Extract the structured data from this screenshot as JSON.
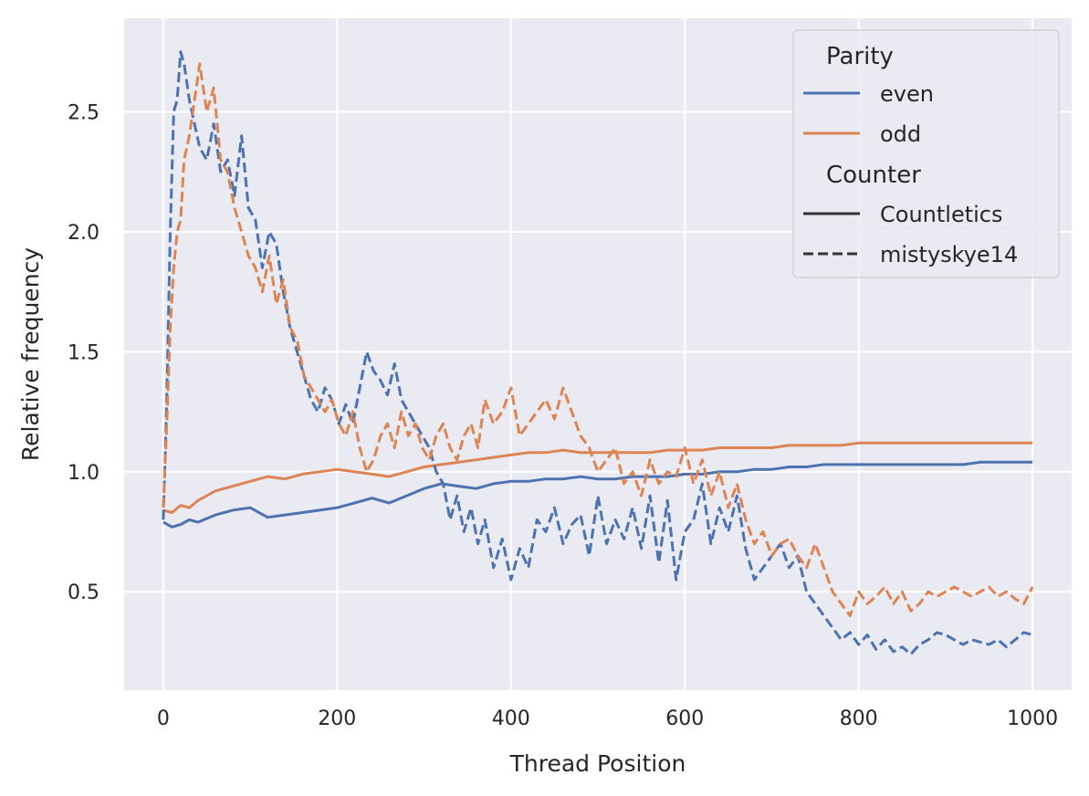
{
  "chart_data": {
    "type": "line",
    "xlabel": "Thread Position",
    "ylabel": "Relative frequency",
    "xlim": [
      -45,
      1045
    ],
    "ylim": [
      0.09,
      2.89
    ],
    "xticks": [
      0,
      200,
      400,
      600,
      800,
      1000
    ],
    "yticks": [
      0.5,
      1.0,
      1.5,
      2.0,
      2.5
    ],
    "xtick_labels": [
      "0",
      "200",
      "400",
      "600",
      "800",
      "1000"
    ],
    "ytick_labels": [
      "0.5",
      "1.0",
      "1.5",
      "2.0",
      "2.5"
    ],
    "grid": true,
    "background": "#eaeaf2",
    "legend": {
      "placement": "top-right",
      "hue_title": "Parity",
      "style_title": "Counter",
      "hue_entries": [
        {
          "label": "even",
          "color": "#4c72b0"
        },
        {
          "label": "odd",
          "color": "#dd8452"
        }
      ],
      "style_entries": [
        {
          "label": "Countletics",
          "dash": "solid"
        },
        {
          "label": "mistyskye14",
          "dash": "dashed"
        }
      ]
    },
    "series": [
      {
        "name": "even, Countletics",
        "color": "#4c72b0",
        "dash": "solid",
        "x": [
          0,
          10,
          20,
          30,
          40,
          60,
          80,
          100,
          120,
          140,
          160,
          180,
          200,
          220,
          240,
          260,
          280,
          300,
          320,
          340,
          360,
          380,
          400,
          420,
          440,
          460,
          480,
          500,
          520,
          540,
          560,
          580,
          600,
          620,
          640,
          660,
          680,
          700,
          720,
          740,
          760,
          780,
          800,
          820,
          840,
          860,
          880,
          900,
          920,
          940,
          960,
          980,
          1000
        ],
        "y": [
          0.79,
          0.77,
          0.78,
          0.8,
          0.79,
          0.82,
          0.84,
          0.85,
          0.81,
          0.82,
          0.83,
          0.84,
          0.85,
          0.87,
          0.89,
          0.87,
          0.9,
          0.93,
          0.95,
          0.94,
          0.93,
          0.95,
          0.96,
          0.96,
          0.97,
          0.97,
          0.98,
          0.97,
          0.97,
          0.98,
          0.98,
          0.98,
          0.99,
          0.99,
          1.0,
          1.0,
          1.01,
          1.01,
          1.02,
          1.02,
          1.03,
          1.03,
          1.03,
          1.03,
          1.03,
          1.03,
          1.03,
          1.03,
          1.03,
          1.04,
          1.04,
          1.04,
          1.04
        ]
      },
      {
        "name": "odd, Countletics",
        "color": "#dd8452",
        "dash": "solid",
        "x": [
          0,
          10,
          20,
          30,
          40,
          60,
          80,
          100,
          120,
          140,
          160,
          180,
          200,
          220,
          240,
          260,
          280,
          300,
          320,
          340,
          360,
          380,
          400,
          420,
          440,
          460,
          480,
          500,
          520,
          540,
          560,
          580,
          600,
          620,
          640,
          660,
          680,
          700,
          720,
          740,
          760,
          780,
          800,
          820,
          840,
          860,
          880,
          900,
          920,
          940,
          960,
          980,
          1000
        ],
        "y": [
          0.84,
          0.83,
          0.86,
          0.85,
          0.88,
          0.92,
          0.94,
          0.96,
          0.98,
          0.97,
          0.99,
          1.0,
          1.01,
          1.0,
          0.99,
          0.98,
          1.0,
          1.02,
          1.03,
          1.04,
          1.05,
          1.06,
          1.07,
          1.08,
          1.08,
          1.09,
          1.08,
          1.08,
          1.08,
          1.08,
          1.08,
          1.09,
          1.09,
          1.09,
          1.1,
          1.1,
          1.1,
          1.1,
          1.11,
          1.11,
          1.11,
          1.11,
          1.12,
          1.12,
          1.12,
          1.12,
          1.12,
          1.12,
          1.12,
          1.12,
          1.12,
          1.12,
          1.12
        ]
      },
      {
        "name": "even, mistyskye14",
        "color": "#4c72b0",
        "dash": "dashed",
        "x": [
          0,
          4,
          8,
          12,
          16,
          20,
          24,
          30,
          36,
          42,
          50,
          58,
          66,
          74,
          82,
          90,
          98,
          106,
          114,
          122,
          130,
          138,
          146,
          154,
          162,
          170,
          178,
          186,
          194,
          202,
          210,
          218,
          226,
          234,
          242,
          250,
          258,
          266,
          274,
          282,
          290,
          298,
          306,
          314,
          322,
          330,
          338,
          346,
          354,
          362,
          370,
          380,
          390,
          400,
          410,
          420,
          430,
          440,
          450,
          460,
          470,
          480,
          490,
          500,
          510,
          520,
          530,
          540,
          550,
          560,
          570,
          580,
          590,
          600,
          610,
          620,
          630,
          640,
          650,
          660,
          670,
          680,
          690,
          700,
          710,
          720,
          730,
          740,
          750,
          760,
          770,
          780,
          790,
          800,
          810,
          820,
          830,
          840,
          850,
          860,
          870,
          880,
          890,
          900,
          910,
          920,
          930,
          940,
          950,
          960,
          970,
          980,
          990,
          1000
        ],
        "y": [
          0.8,
          1.3,
          2.0,
          2.5,
          2.55,
          2.75,
          2.7,
          2.55,
          2.45,
          2.35,
          2.3,
          2.45,
          2.25,
          2.3,
          2.15,
          2.4,
          2.1,
          2.05,
          1.85,
          2.0,
          1.95,
          1.75,
          1.6,
          1.5,
          1.4,
          1.3,
          1.25,
          1.35,
          1.3,
          1.2,
          1.28,
          1.2,
          1.35,
          1.5,
          1.42,
          1.38,
          1.32,
          1.45,
          1.3,
          1.25,
          1.2,
          1.15,
          1.1,
          1.0,
          0.95,
          0.8,
          0.9,
          0.75,
          0.85,
          0.7,
          0.8,
          0.6,
          0.72,
          0.55,
          0.68,
          0.6,
          0.8,
          0.75,
          0.85,
          0.7,
          0.78,
          0.82,
          0.65,
          0.9,
          0.7,
          0.8,
          0.72,
          0.85,
          0.68,
          0.9,
          0.62,
          0.88,
          0.55,
          0.75,
          0.8,
          0.95,
          0.7,
          0.85,
          0.75,
          0.9,
          0.68,
          0.55,
          0.6,
          0.65,
          0.7,
          0.6,
          0.65,
          0.5,
          0.45,
          0.4,
          0.35,
          0.3,
          0.33,
          0.28,
          0.32,
          0.26,
          0.3,
          0.25,
          0.27,
          0.24,
          0.28,
          0.3,
          0.33,
          0.32,
          0.3,
          0.28,
          0.3,
          0.29,
          0.28,
          0.3,
          0.27,
          0.3,
          0.33,
          0.32
        ]
      },
      {
        "name": "odd, mistyskye14",
        "color": "#dd8452",
        "dash": "dashed",
        "x": [
          0,
          4,
          8,
          12,
          16,
          20,
          24,
          30,
          36,
          42,
          50,
          58,
          66,
          74,
          82,
          90,
          98,
          106,
          114,
          122,
          130,
          138,
          146,
          154,
          162,
          170,
          178,
          186,
          194,
          202,
          210,
          218,
          226,
          234,
          242,
          250,
          258,
          266,
          274,
          282,
          290,
          298,
          306,
          314,
          322,
          330,
          338,
          346,
          354,
          362,
          370,
          380,
          390,
          400,
          410,
          420,
          430,
          440,
          450,
          460,
          470,
          480,
          490,
          500,
          510,
          520,
          530,
          540,
          550,
          560,
          570,
          580,
          590,
          600,
          610,
          620,
          630,
          640,
          650,
          660,
          670,
          680,
          690,
          700,
          710,
          720,
          730,
          740,
          750,
          760,
          770,
          780,
          790,
          800,
          810,
          820,
          830,
          840,
          850,
          860,
          870,
          880,
          890,
          900,
          910,
          920,
          930,
          940,
          950,
          960,
          970,
          980,
          990,
          1000
        ],
        "y": [
          0.85,
          1.2,
          1.6,
          1.85,
          2.0,
          2.05,
          2.3,
          2.4,
          2.55,
          2.7,
          2.5,
          2.6,
          2.3,
          2.25,
          2.1,
          2.0,
          1.9,
          1.85,
          1.75,
          1.9,
          1.7,
          1.8,
          1.6,
          1.55,
          1.4,
          1.35,
          1.3,
          1.25,
          1.3,
          1.2,
          1.15,
          1.25,
          1.1,
          1.0,
          1.05,
          1.15,
          1.2,
          1.1,
          1.25,
          1.15,
          1.2,
          1.1,
          1.05,
          1.15,
          1.2,
          1.1,
          1.05,
          1.15,
          1.2,
          1.1,
          1.3,
          1.2,
          1.25,
          1.35,
          1.15,
          1.2,
          1.25,
          1.3,
          1.22,
          1.35,
          1.25,
          1.15,
          1.1,
          1.0,
          1.05,
          1.1,
          0.95,
          1.0,
          0.9,
          1.05,
          0.95,
          1.0,
          0.98,
          1.1,
          0.95,
          1.05,
          0.9,
          1.0,
          0.85,
          0.95,
          0.8,
          0.7,
          0.75,
          0.65,
          0.7,
          0.72,
          0.65,
          0.6,
          0.7,
          0.6,
          0.5,
          0.45,
          0.4,
          0.5,
          0.45,
          0.48,
          0.52,
          0.45,
          0.5,
          0.42,
          0.45,
          0.5,
          0.48,
          0.5,
          0.52,
          0.5,
          0.48,
          0.5,
          0.52,
          0.48,
          0.5,
          0.47,
          0.45,
          0.52
        ]
      }
    ]
  }
}
